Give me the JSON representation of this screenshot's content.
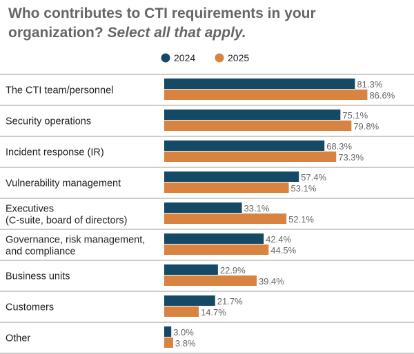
{
  "title": {
    "main": "Who contributes to CTI requirements in your organization?",
    "emphasis": "Select all that apply."
  },
  "colors": {
    "series_2024": "#154a66",
    "series_2025": "#d8833f",
    "label_text": "#222222",
    "value_text": "#666666",
    "separator": "#9a9a9a"
  },
  "chart_data": {
    "type": "bar",
    "orientation": "horizontal",
    "title": "Who contributes to CTI requirements in your organization? Select all that apply.",
    "categories": [
      [
        "The CTI team/personnel"
      ],
      [
        "Security operations"
      ],
      [
        "Incident response (IR)"
      ],
      [
        "Vulnerability management"
      ],
      [
        "Executives",
        "(C-suite, board of directors)"
      ],
      [
        "Governance, risk management,",
        "and compliance"
      ],
      [
        "Business units"
      ],
      [
        "Customers"
      ],
      [
        "Other"
      ]
    ],
    "series": [
      {
        "name": "2024",
        "values": [
          81.3,
          75.1,
          68.3,
          57.4,
          33.1,
          42.4,
          22.9,
          21.7,
          3.0
        ],
        "labels": [
          "81.3%",
          "75.1%",
          "68.3%",
          "57.4%",
          "33.1%",
          "42.4%",
          "22.9%",
          "21.7%",
          "3.0%"
        ]
      },
      {
        "name": "2025",
        "values": [
          86.6,
          79.8,
          73.3,
          53.1,
          52.1,
          44.5,
          39.4,
          14.7,
          3.8
        ],
        "labels": [
          "86.6%",
          "79.8%",
          "73.3%",
          "53.1%",
          "52.1%",
          "44.5%",
          "39.4%",
          "14.7%",
          "3.8%"
        ]
      }
    ],
    "xlim": [
      0,
      100
    ],
    "legend_position": "top-center",
    "grid": false
  }
}
